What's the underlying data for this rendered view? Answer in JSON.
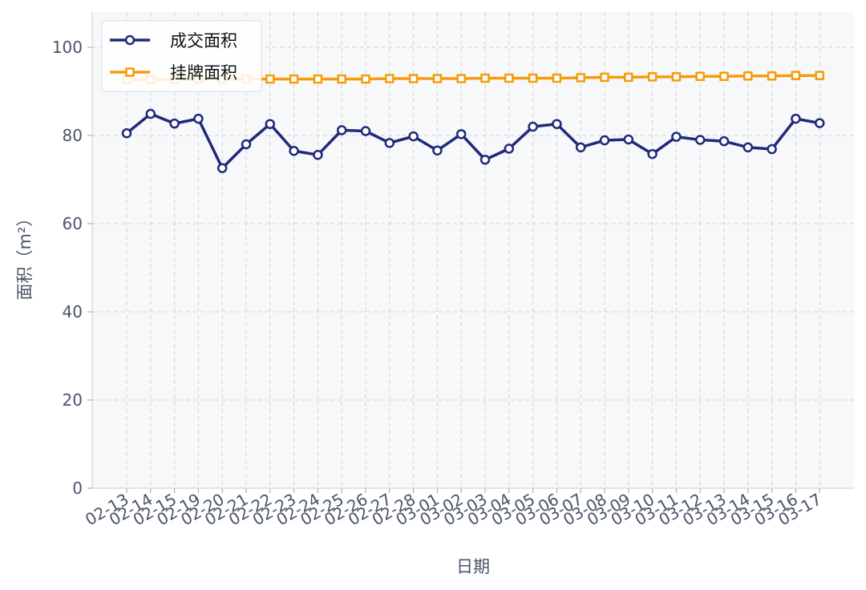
{
  "chart_data": {
    "type": "line",
    "xlabel": "日期",
    "ylabel": "面积（m²）",
    "ylim": [
      0,
      108
    ],
    "yticks": [
      0,
      20,
      40,
      60,
      80,
      100
    ],
    "grid": true,
    "legend_position": "top-left",
    "categories": [
      "02-13",
      "02-14",
      "02-15",
      "02-19",
      "02-20",
      "02-21",
      "02-22",
      "02-23",
      "02-24",
      "02-25",
      "02-26",
      "02-27",
      "02-28",
      "03-01",
      "03-02",
      "03-03",
      "03-04",
      "03-05",
      "03-06",
      "03-07",
      "03-08",
      "03-09",
      "03-10",
      "03-11",
      "03-12",
      "03-13",
      "03-14",
      "03-15",
      "03-16",
      "03-17"
    ],
    "series": [
      {
        "name": "成交面积",
        "color": "#1f2a7a",
        "marker": "circle",
        "values": [
          80.5,
          84.9,
          82.7,
          83.8,
          72.6,
          78.0,
          82.6,
          76.5,
          75.6,
          81.2,
          81.0,
          78.3,
          79.8,
          76.6,
          80.3,
          74.5,
          77.0,
          82.0,
          82.6,
          77.3,
          78.9,
          79.1,
          75.8,
          79.7,
          79.0,
          78.7,
          77.3,
          76.9,
          83.8,
          82.8
        ]
      },
      {
        "name": "挂牌面积",
        "color": "#f59c0c",
        "marker": "square",
        "values": [
          92.6,
          92.7,
          92.7,
          92.8,
          92.8,
          92.8,
          92.8,
          92.8,
          92.8,
          92.8,
          92.8,
          92.9,
          92.9,
          92.9,
          92.9,
          93.0,
          93.0,
          93.0,
          93.0,
          93.1,
          93.2,
          93.2,
          93.3,
          93.3,
          93.4,
          93.4,
          93.5,
          93.5,
          93.6,
          93.6
        ]
      }
    ]
  }
}
